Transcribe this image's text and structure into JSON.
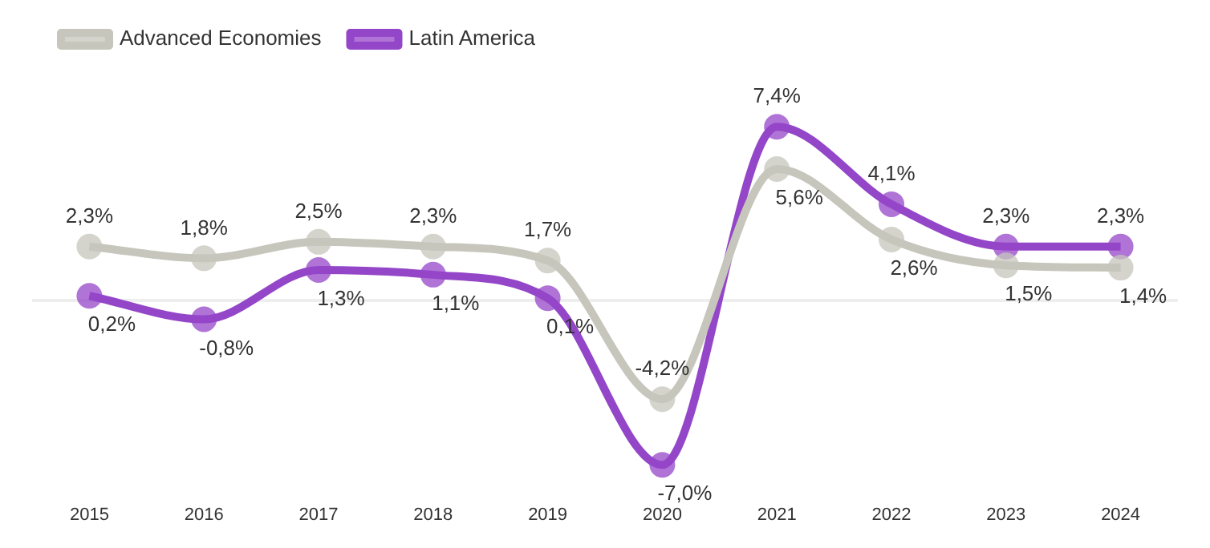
{
  "chart_data": {
    "type": "line",
    "categories": [
      "2015",
      "2016",
      "2017",
      "2018",
      "2019",
      "2020",
      "2021",
      "2022",
      "2023",
      "2024"
    ],
    "series": [
      {
        "name": "Advanced Economies",
        "color": "#c6c6bc",
        "values": [
          2.3,
          1.8,
          2.5,
          2.3,
          1.7,
          -4.2,
          5.6,
          2.6,
          1.5,
          1.4
        ],
        "value_labels": [
          "2,3%",
          "1,8%",
          "2,5%",
          "2,3%",
          "1,7%",
          "-4,2%",
          "5,6%",
          "2,6%",
          "1,5%",
          "1,4%"
        ]
      },
      {
        "name": "Latin America",
        "color": "#9446c8",
        "values": [
          0.2,
          -0.8,
          1.3,
          1.1,
          0.1,
          -7.0,
          7.4,
          4.1,
          2.3,
          2.3
        ],
        "value_labels": [
          "0,2%",
          "-0,8%",
          "1,3%",
          "1,1%",
          "0,1%",
          "-7,0%",
          "7,4%",
          "4,1%",
          "2,3%",
          "2,3%"
        ]
      }
    ],
    "ref_lines": [
      {
        "axis": "y",
        "value": 0,
        "color": "#eeeeee"
      }
    ],
    "marker": "circle",
    "legend": "top left",
    "grid": false,
    "tick_labels": "x"
  }
}
